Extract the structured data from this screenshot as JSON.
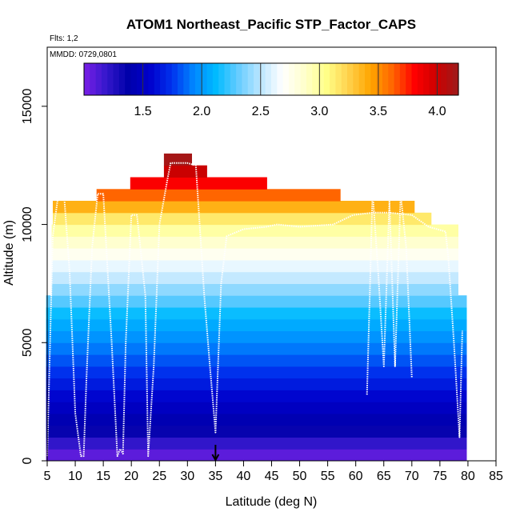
{
  "chart_data": {
    "type": "heatmap",
    "title": "ATOM1 Northeast_Pacific STP_Factor_CAPS",
    "flights_label": "Flts: 1,2",
    "mmdd_label": "MMDD: 0729,0801",
    "xlabel": "Latitude (deg N)",
    "ylabel": "Altitude (m)",
    "xlim": [
      5,
      85
    ],
    "ylim": [
      0,
      17500
    ],
    "x_ticks": [
      "5",
      "10",
      "15",
      "20",
      "25",
      "30",
      "35",
      "40",
      "45",
      "50",
      "55",
      "60",
      "65",
      "70",
      "75",
      "80",
      "85"
    ],
    "y_ticks": [
      "0",
      "5000",
      "10000",
      "15000"
    ],
    "colorbar": {
      "range": [
        1.0,
        4.18
      ],
      "ticks": [
        "1.5",
        "2.0",
        "2.5",
        "3.0",
        "3.5",
        "4.0"
      ],
      "colors": [
        "#7a1fe6",
        "#3518cc",
        "#0000aa",
        "#0000cc",
        "#0033ee",
        "#0088ff",
        "#00bbff",
        "#66ccff",
        "#bbe6ff",
        "#ffffff",
        "#ffffcc",
        "#ffff88",
        "#ffd24d",
        "#ffa500",
        "#ff6600",
        "#ff0000",
        "#cc0000",
        "#9e1a1a"
      ]
    },
    "layer_upper_edges": {
      "altitude_m": [
        500,
        1000,
        1500,
        2000,
        2500,
        3000,
        3500,
        4000,
        4500,
        5000,
        5500,
        6000,
        6500,
        7000,
        7500,
        8000,
        8500,
        9000,
        9500,
        10000,
        10500,
        11000,
        11500,
        12000,
        12500,
        13000
      ],
      "color_value": [
        1.08,
        1.2,
        1.35,
        1.42,
        1.5,
        1.58,
        1.66,
        1.74,
        1.82,
        1.9,
        1.98,
        2.06,
        2.14,
        2.28,
        2.4,
        2.52,
        2.62,
        2.74,
        2.86,
        2.98,
        3.15,
        3.38,
        3.62,
        3.82,
        4.0,
        4.15
      ]
    },
    "layer_extents": [
      [
        4.8,
        79.8
      ],
      [
        4.8,
        79.8
      ],
      [
        4.8,
        79.8
      ],
      [
        4.8,
        79.8
      ],
      [
        4.8,
        79.8
      ],
      [
        4.8,
        79.8
      ],
      [
        4.8,
        79.8
      ],
      [
        4.8,
        79.8
      ],
      [
        4.8,
        79.8
      ],
      [
        4.8,
        79.8
      ],
      [
        4.8,
        79.8
      ],
      [
        4.8,
        79.8
      ],
      [
        4.8,
        79.8
      ],
      [
        4.8,
        79.8
      ],
      [
        5.8,
        78.3
      ],
      [
        5.8,
        78.3
      ],
      [
        5.8,
        78.3
      ],
      [
        5.8,
        78.3
      ],
      [
        5.8,
        78.3
      ],
      [
        5.8,
        78.3
      ],
      [
        6.0,
        73.5
      ],
      [
        6.0,
        70.5
      ],
      [
        13.8,
        57.3
      ],
      [
        19.8,
        44.2
      ],
      [
        25.8,
        33.5
      ],
      [
        25.8,
        30.8
      ]
    ],
    "flight_track": {
      "latitude": [
        5.0,
        6.0,
        7.0,
        8.0,
        9.0,
        10.0,
        11.0,
        11.5,
        12.0,
        13.0,
        14.0,
        15.0,
        16.5,
        17.5,
        18.0,
        18.5,
        19.0,
        20.0,
        21.0,
        22.5,
        23.0,
        24.0,
        25.0,
        26.5,
        27.0,
        28.0,
        30.0,
        31.5,
        33.0,
        34.0,
        35.0,
        36.0,
        37.0,
        40.0,
        44.0,
        46.0,
        50.0,
        56.0,
        59.5,
        63.0,
        66.0,
        70.0,
        73.0,
        76.0,
        76.5,
        77.5,
        78.5,
        79.0
      ],
      "altitude_m": [
        200,
        9500,
        11300,
        11300,
        8000,
        2000,
        200,
        200,
        3500,
        9000,
        11300,
        11300,
        5000,
        200,
        500,
        300,
        5000,
        10400,
        10400,
        7000,
        200,
        4000,
        10000,
        12000,
        12600,
        12600,
        12600,
        12500,
        7000,
        4000,
        1200,
        7500,
        9500,
        9800,
        9900,
        10000,
        9900,
        10000,
        10400,
        10500,
        10500,
        10400,
        9900,
        9700,
        8600,
        5000,
        1000,
        5500
      ]
    },
    "flight_track_2": {
      "latitude": [
        62.0,
        62.5,
        63.0,
        64.0,
        65.0,
        66.0,
        67.0,
        68.0,
        69.0,
        70.0
      ],
      "altitude_m": [
        2800,
        7000,
        11400,
        8000,
        4000,
        11000,
        4000,
        11300,
        9000,
        3500
      ]
    },
    "marker_latitude": 35
  }
}
